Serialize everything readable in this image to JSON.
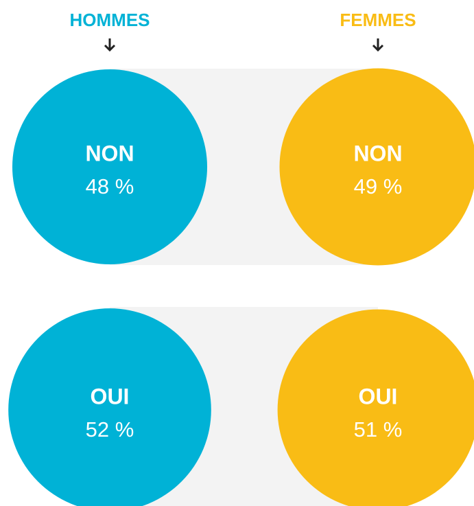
{
  "chart_data": {
    "type": "bubble",
    "categories": [
      "HOMMES",
      "FEMMES"
    ],
    "colors": [
      "#00b2d6",
      "#f9bc15"
    ],
    "series": [
      {
        "name": "NON",
        "values": [
          48,
          49
        ],
        "value_labels": [
          "48 %",
          "49 %"
        ]
      },
      {
        "name": "OUI",
        "values": [
          52,
          51
        ],
        "value_labels": [
          "52 %",
          "51 %"
        ]
      }
    ]
  }
}
